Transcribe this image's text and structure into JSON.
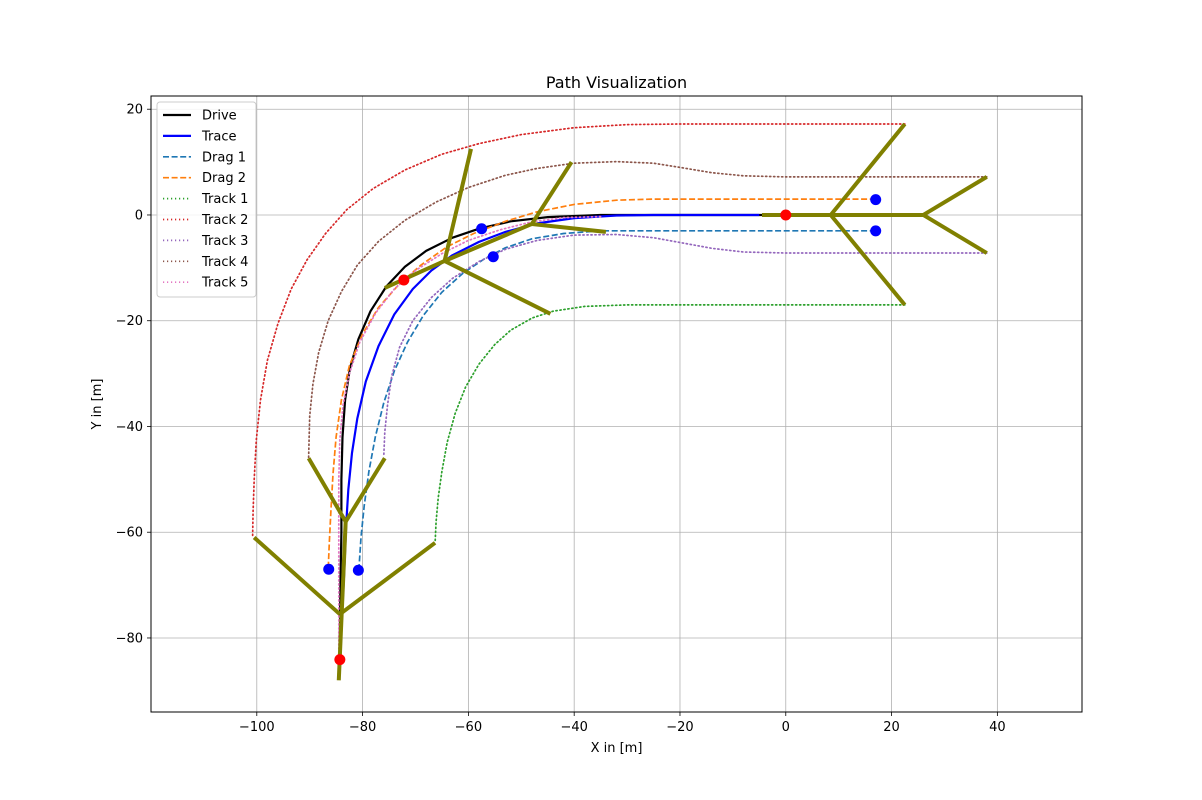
{
  "chart_data": {
    "type": "line",
    "title": "Path Visualization",
    "xlabel": "X in [m]",
    "ylabel": "Y in [m]",
    "xlim": [
      -120,
      56
    ],
    "ylim": [
      -94,
      22.5
    ],
    "xticks": [
      -100,
      -80,
      -60,
      -40,
      -20,
      0,
      20,
      40
    ],
    "yticks": [
      -80,
      -60,
      -40,
      -20,
      0,
      20
    ],
    "xtick_labels": [
      "−100",
      "−80",
      "−60",
      "−40",
      "−20",
      "0",
      "20",
      "40"
    ],
    "ytick_labels": [
      "−80",
      "−60",
      "−40",
      "−20",
      "0",
      "20"
    ],
    "grid": true,
    "legend_position": "top-left",
    "series": [
      {
        "name": "Drive",
        "color": "#000000",
        "style": "solid",
        "width": 2.2,
        "points": [
          [
            -4.5,
            0
          ],
          [
            -15,
            0
          ],
          [
            -25,
            0
          ],
          [
            -35,
            0
          ],
          [
            -45,
            -0.4
          ],
          [
            -52,
            -1.2
          ],
          [
            -58,
            -2.6
          ],
          [
            -63,
            -4.3
          ],
          [
            -68,
            -6.8
          ],
          [
            -72,
            -9.8
          ],
          [
            -75.5,
            -13.5
          ],
          [
            -78.5,
            -18.2
          ],
          [
            -80.8,
            -23.5
          ],
          [
            -82.4,
            -29
          ],
          [
            -83.3,
            -35
          ],
          [
            -83.8,
            -42
          ],
          [
            -84,
            -50
          ],
          [
            -84,
            -60
          ],
          [
            -84.2,
            -70
          ],
          [
            -84.3,
            -80
          ],
          [
            -84.3,
            -84
          ]
        ]
      },
      {
        "name": "Trace",
        "color": "#0000ff",
        "style": "solid",
        "width": 2.2,
        "points": [
          [
            -5,
            0
          ],
          [
            -15,
            0
          ],
          [
            -25,
            0
          ],
          [
            -32,
            -0.1
          ],
          [
            -40,
            -0.6
          ],
          [
            -47,
            -1.6
          ],
          [
            -53,
            -3.2
          ],
          [
            -58,
            -5.1
          ],
          [
            -63,
            -7.6
          ],
          [
            -67,
            -10.5
          ],
          [
            -70.5,
            -14
          ],
          [
            -74,
            -18.8
          ],
          [
            -77,
            -24.8
          ],
          [
            -79.4,
            -31.5
          ],
          [
            -81,
            -38.5
          ],
          [
            -82,
            -45
          ],
          [
            -82.7,
            -52
          ],
          [
            -83.1,
            -58.5
          ],
          [
            -83.5,
            -68
          ],
          [
            -84,
            -78
          ],
          [
            -84.3,
            -84
          ]
        ]
      },
      {
        "name": "Drag 1",
        "color": "#1f77b4",
        "style": "dashed",
        "width": 1.7,
        "points": [
          [
            17,
            -3
          ],
          [
            5,
            -3
          ],
          [
            -10,
            -3
          ],
          [
            -25,
            -3
          ],
          [
            -35,
            -3
          ],
          [
            -42,
            -3.5
          ],
          [
            -48,
            -4.5
          ],
          [
            -53,
            -6.2
          ],
          [
            -57,
            -8.3
          ],
          [
            -61,
            -11
          ],
          [
            -65,
            -14.6
          ],
          [
            -68.5,
            -19
          ],
          [
            -71.5,
            -24
          ],
          [
            -74,
            -29.5
          ],
          [
            -76,
            -35.5
          ],
          [
            -77.6,
            -42
          ],
          [
            -78.8,
            -48.5
          ],
          [
            -79.7,
            -55
          ],
          [
            -80.3,
            -61
          ],
          [
            -80.7,
            -67
          ]
        ]
      },
      {
        "name": "Drag 2",
        "color": "#ff7f0e",
        "style": "dashed",
        "width": 1.7,
        "points": [
          [
            17,
            3
          ],
          [
            5,
            3
          ],
          [
            -10,
            3
          ],
          [
            -25,
            3
          ],
          [
            -32,
            2.8
          ],
          [
            -40,
            2
          ],
          [
            -47,
            0.6
          ],
          [
            -53,
            -1.2
          ],
          [
            -59,
            -3.5
          ],
          [
            -64,
            -6
          ],
          [
            -69,
            -9.5
          ],
          [
            -73,
            -13
          ],
          [
            -77,
            -17.5
          ],
          [
            -80,
            -22.5
          ],
          [
            -82.5,
            -28.5
          ],
          [
            -84,
            -35
          ],
          [
            -85,
            -42
          ],
          [
            -85.6,
            -49
          ],
          [
            -86,
            -56
          ],
          [
            -86.3,
            -62
          ],
          [
            -86.5,
            -67
          ]
        ]
      },
      {
        "name": "Track 1",
        "color": "#2ca02c",
        "style": "dotted",
        "width": 1.7,
        "points": [
          [
            22.5,
            -17
          ],
          [
            10,
            -17
          ],
          [
            -5,
            -17
          ],
          [
            -20,
            -17
          ],
          [
            -30,
            -17
          ],
          [
            -38,
            -17.3
          ],
          [
            -44,
            -18.2
          ],
          [
            -48,
            -19.5
          ],
          [
            -52,
            -21.8
          ],
          [
            -55,
            -24.5
          ],
          [
            -58,
            -28.2
          ],
          [
            -60.5,
            -32.5
          ],
          [
            -62.5,
            -37.5
          ],
          [
            -64,
            -43
          ],
          [
            -65,
            -48.5
          ],
          [
            -65.7,
            -53.5
          ],
          [
            -66.1,
            -58
          ],
          [
            -66.3,
            -62
          ]
        ]
      },
      {
        "name": "Track 2",
        "color": "#d62728",
        "style": "dotted",
        "width": 1.7,
        "points": [
          [
            22.5,
            17.2
          ],
          [
            10,
            17.2
          ],
          [
            -5,
            17.2
          ],
          [
            -20,
            17.2
          ],
          [
            -30,
            17.1
          ],
          [
            -40,
            16.5
          ],
          [
            -50,
            15.2
          ],
          [
            -58,
            13.5
          ],
          [
            -65,
            11.5
          ],
          [
            -72,
            8.5
          ],
          [
            -78,
            5
          ],
          [
            -83,
            1
          ],
          [
            -87,
            -3.5
          ],
          [
            -90.5,
            -8.5
          ],
          [
            -93.5,
            -14
          ],
          [
            -96,
            -20.5
          ],
          [
            -98,
            -27.5
          ],
          [
            -99.3,
            -35
          ],
          [
            -100.1,
            -42.5
          ],
          [
            -100.5,
            -50
          ],
          [
            -100.7,
            -56
          ],
          [
            -100.8,
            -61
          ]
        ]
      },
      {
        "name": "Track 3",
        "color": "#9467bd",
        "style": "dotted",
        "width": 1.7,
        "points": [
          [
            38,
            -7.2
          ],
          [
            25,
            -7.2
          ],
          [
            10,
            -7.2
          ],
          [
            0,
            -7.2
          ],
          [
            -8,
            -7
          ],
          [
            -14,
            -6.3
          ],
          [
            -20,
            -5.2
          ],
          [
            -25,
            -4.3
          ],
          [
            -32,
            -3.7
          ],
          [
            -40,
            -3.8
          ],
          [
            -47,
            -4.8
          ],
          [
            -53,
            -6.5
          ],
          [
            -58,
            -8.8
          ],
          [
            -63,
            -12
          ],
          [
            -67,
            -15.6
          ],
          [
            -70.5,
            -20
          ],
          [
            -73,
            -25
          ],
          [
            -74.5,
            -30.5
          ],
          [
            -75.3,
            -36
          ],
          [
            -75.8,
            -41
          ],
          [
            -76,
            -45.5
          ]
        ]
      },
      {
        "name": "Track 4",
        "color": "#8c564b",
        "style": "dotted",
        "width": 1.7,
        "points": [
          [
            38,
            7.2
          ],
          [
            25,
            7.2
          ],
          [
            10,
            7.2
          ],
          [
            0,
            7.2
          ],
          [
            -8,
            7.4
          ],
          [
            -14,
            8
          ],
          [
            -20,
            9
          ],
          [
            -25,
            9.8
          ],
          [
            -32,
            10.1
          ],
          [
            -40,
            9.8
          ],
          [
            -47,
            8.8
          ],
          [
            -53,
            7.5
          ],
          [
            -60,
            5.2
          ],
          [
            -66,
            2.5
          ],
          [
            -72,
            -1
          ],
          [
            -77,
            -5
          ],
          [
            -81,
            -9.5
          ],
          [
            -84,
            -14.5
          ],
          [
            -86.5,
            -20
          ],
          [
            -88.3,
            -26
          ],
          [
            -89.4,
            -32
          ],
          [
            -90,
            -38
          ],
          [
            -90.2,
            -46
          ]
        ]
      },
      {
        "name": "Track 5",
        "color": "#e377c2",
        "style": "dotted",
        "width": 1.7,
        "points": [
          [
            -35,
            -0.3
          ],
          [
            -42,
            -0.5
          ],
          [
            -48,
            -1.3
          ],
          [
            -54,
            -2.8
          ],
          [
            -60,
            -4.8
          ],
          [
            -65,
            -7.3
          ],
          [
            -70,
            -10.5
          ],
          [
            -74,
            -14
          ],
          [
            -77.5,
            -18.5
          ],
          [
            -80.5,
            -24
          ],
          [
            -82.5,
            -30
          ],
          [
            -83.7,
            -36
          ],
          [
            -84.3,
            -42.5
          ],
          [
            -84.5,
            -50
          ],
          [
            -84.5,
            -58
          ],
          [
            -84.5,
            -66
          ],
          [
            -84.5,
            -74
          ],
          [
            -84.5,
            -82
          ]
        ]
      }
    ],
    "branch_lines": {
      "color": "#808000",
      "segments": [
        [
          [
            -4.5,
            0
          ],
          [
            26,
            0
          ]
        ],
        [
          [
            8.5,
            0
          ],
          [
            22.5,
            17.2
          ]
        ],
        [
          [
            8.5,
            0
          ],
          [
            22.5,
            -17
          ]
        ],
        [
          [
            26,
            0
          ],
          [
            38,
            7.2
          ]
        ],
        [
          [
            26,
            0
          ],
          [
            38,
            -7.2
          ]
        ],
        [
          [
            -84.5,
            -88
          ],
          [
            -83.2,
            -58
          ]
        ],
        [
          [
            -84.3,
            -75.5
          ],
          [
            -100.5,
            -61
          ]
        ],
        [
          [
            -84.3,
            -75.5
          ],
          [
            -66.3,
            -62
          ]
        ],
        [
          [
            -83.2,
            -58
          ],
          [
            -90.2,
            -46
          ]
        ],
        [
          [
            -83.2,
            -58
          ],
          [
            -75.8,
            -46
          ]
        ],
        [
          [
            -75.8,
            -13.8
          ],
          [
            -64.5,
            -8.7
          ]
        ],
        [
          [
            -64.5,
            -8.7
          ],
          [
            -48,
            -1.7
          ]
        ],
        [
          [
            -64.5,
            -8.7
          ],
          [
            -59.5,
            12.5
          ]
        ],
        [
          [
            -64.5,
            -8.7
          ],
          [
            -44.5,
            -18.7
          ]
        ],
        [
          [
            -48,
            -1.7
          ],
          [
            -40.5,
            10
          ]
        ],
        [
          [
            -48,
            -1.7
          ],
          [
            -34,
            -3.2
          ]
        ]
      ]
    },
    "markers": {
      "red": {
        "color": "#ff0000",
        "points": [
          [
            0,
            0
          ],
          [
            -72.2,
            -12.3
          ],
          [
            -84.3,
            -84.1
          ]
        ]
      },
      "blue": {
        "color": "#0000ff",
        "points": [
          [
            17,
            2.9
          ],
          [
            17,
            -3
          ],
          [
            -57.5,
            -2.6
          ],
          [
            -55.3,
            -7.9
          ],
          [
            -86.4,
            -67
          ],
          [
            -80.8,
            -67.2
          ]
        ]
      }
    }
  }
}
